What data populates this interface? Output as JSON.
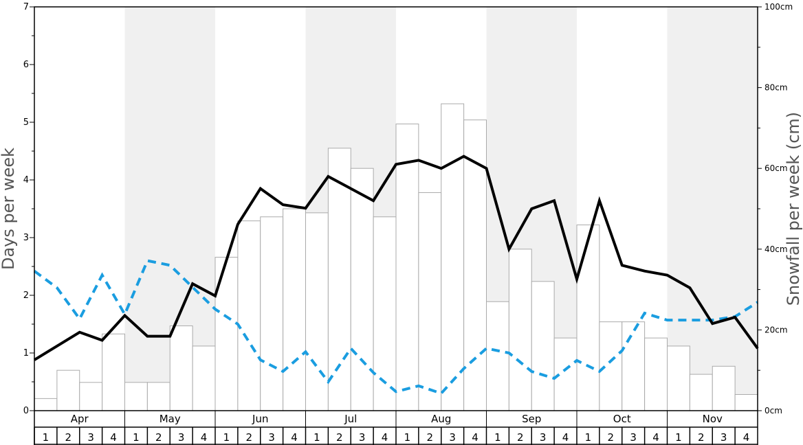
{
  "chart_data": {
    "type": "bar+line",
    "left_axis": {
      "label": "Days per week",
      "ylim": [
        0,
        7
      ],
      "ticks": [
        "0",
        "1",
        "2",
        "3",
        "4",
        "5",
        "6",
        "7"
      ]
    },
    "right_axis": {
      "label": "Snowfall per week (cm)",
      "ylim": [
        0,
        100
      ],
      "ticks": [
        "0cm",
        "20cm",
        "40cm",
        "60cm",
        "80cm",
        "100cm"
      ]
    },
    "months": [
      "Apr",
      "May",
      "Jun",
      "Jul",
      "Aug",
      "Sep",
      "Oct",
      "Nov"
    ],
    "weeks": [
      "1",
      "2",
      "3",
      "4"
    ],
    "month_shading": [
      false,
      true,
      false,
      true,
      false,
      true,
      false,
      true
    ],
    "snowfall_bars_cm": [
      3,
      10,
      7,
      19,
      7,
      7,
      21,
      16,
      38,
      47,
      48,
      50,
      49,
      65,
      60,
      48,
      71,
      54,
      76,
      72,
      27,
      40,
      32,
      18,
      46,
      22,
      22,
      18,
      16,
      9,
      11,
      4
    ],
    "black_line_days": [
      0.88,
      1.12,
      1.36,
      1.22,
      1.65,
      1.29,
      1.29,
      2.2,
      1.99,
      3.23,
      3.85,
      3.57,
      3.51,
      4.06,
      3.85,
      3.64,
      4.27,
      4.34,
      4.2,
      4.41,
      4.2,
      2.8,
      3.5,
      3.64,
      2.28,
      3.64,
      2.52,
      2.42,
      2.35,
      2.13,
      1.51,
      1.62,
      1.08
    ],
    "blue_dashed_days": [
      2.42,
      2.13,
      1.59,
      2.35,
      1.67,
      2.6,
      2.52,
      2.14,
      1.76,
      1.5,
      0.88,
      0.68,
      1.02,
      0.5,
      1.08,
      0.66,
      0.33,
      0.43,
      0.3,
      0.73,
      1.08,
      1.0,
      0.68,
      0.56,
      0.87,
      0.68,
      1.04,
      1.69,
      1.57,
      1.57,
      1.57,
      1.63,
      1.88
    ],
    "colors": {
      "bar_fill": "#ffffff",
      "bar_stroke": "#aaaaaa",
      "shade": "#f0f0f0",
      "black_line": "#000000",
      "blue_line": "#1a9de0",
      "axis": "#000000",
      "axis_title": "#555555"
    }
  }
}
